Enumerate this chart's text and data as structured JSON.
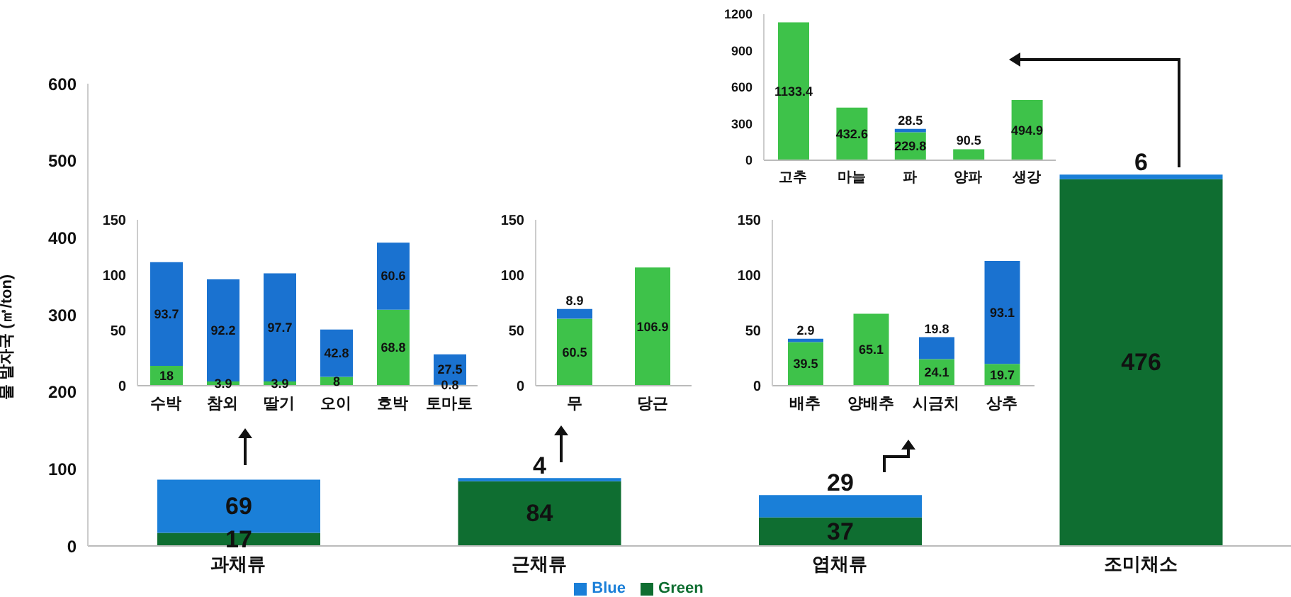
{
  "chart_data": [
    {
      "type": "bar",
      "ylabel": "물 발자국 (㎥/ton)",
      "categories": [
        "과채류",
        "근채류",
        "엽채류",
        "조미채소"
      ],
      "stacked": true,
      "ylim": [
        0,
        600
      ],
      "yticks": [
        0,
        100,
        200,
        300,
        400,
        500,
        600
      ],
      "grid": false,
      "legend": "bottom",
      "data_labels": true,
      "series": [
        {
          "name": "Green",
          "color": "#0f6e31",
          "values": [
            17,
            84,
            37,
            476
          ]
        },
        {
          "name": "Blue",
          "color": "#1a7fd8",
          "values": [
            69,
            4,
            29,
            6
          ]
        }
      ]
    },
    {
      "type": "bar",
      "categories": [
        "수박",
        "참외",
        "딸기",
        "오이",
        "호박",
        "토마토"
      ],
      "stacked": true,
      "ylim": [
        0,
        150
      ],
      "yticks": [
        0,
        50,
        100,
        150
      ],
      "grid": false,
      "legend": false,
      "data_labels": true,
      "series": [
        {
          "color": "#3ec24a",
          "values": [
            18,
            3.9,
            3.9,
            8,
            68.8,
            0.8
          ]
        },
        {
          "color": "#1a72d0",
          "values": [
            93.7,
            92.2,
            97.7,
            42.8,
            60.6,
            27.5
          ]
        }
      ]
    },
    {
      "type": "bar",
      "categories": [
        "무",
        "당근"
      ],
      "stacked": true,
      "ylim": [
        0,
        150
      ],
      "yticks": [
        0,
        50,
        100,
        150
      ],
      "grid": false,
      "legend": false,
      "data_labels": true,
      "series": [
        {
          "color": "#3ec24a",
          "values": [
            60.5,
            106.9
          ]
        },
        {
          "color": "#1a72d0",
          "values": [
            8.9,
            null
          ]
        }
      ]
    },
    {
      "type": "bar",
      "categories": [
        "배추",
        "양배추",
        "시금치",
        "상추"
      ],
      "stacked": true,
      "ylim": [
        0,
        150
      ],
      "yticks": [
        0,
        50,
        100,
        150
      ],
      "grid": false,
      "legend": false,
      "data_labels": true,
      "series": [
        {
          "color": "#3ec24a",
          "values": [
            39.5,
            65.1,
            24.1,
            19.7
          ]
        },
        {
          "color": "#1a72d0",
          "values": [
            2.9,
            null,
            19.8,
            93.1
          ]
        }
      ]
    },
    {
      "type": "bar",
      "categories": [
        "고추",
        "마늘",
        "파",
        "양파",
        "생강"
      ],
      "stacked": true,
      "ylim": [
        0,
        1200
      ],
      "yticks": [
        0,
        300,
        600,
        900,
        1200
      ],
      "grid": false,
      "legend": false,
      "data_labels": true,
      "series": [
        {
          "color": "#3ec24a",
          "values": [
            1133.4,
            432.6,
            229.8,
            90.5,
            494.9
          ]
        },
        {
          "color": "#1a72d0",
          "values": [
            null,
            null,
            28.5,
            null,
            null
          ]
        }
      ]
    }
  ]
}
